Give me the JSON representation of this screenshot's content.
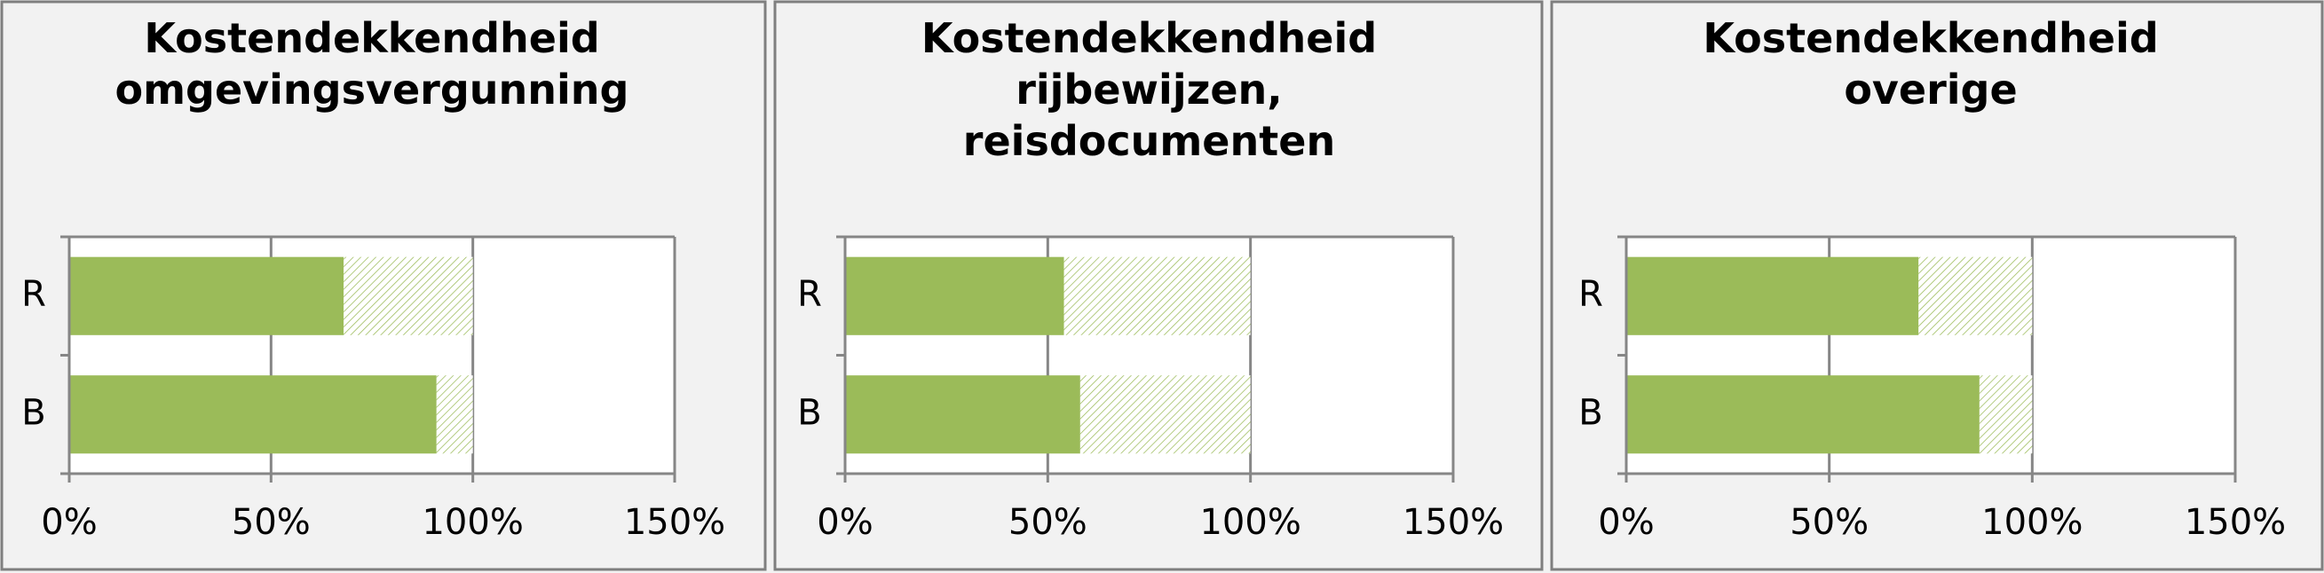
{
  "chart_data": [
    {
      "type": "bar",
      "orientation": "horizontal",
      "title": "Kostendekkendheid omgevingsvergunning",
      "categories": [
        "R",
        "B"
      ],
      "series": [
        {
          "color": "#9bbb59",
          "values": [
            68,
            91
          ]
        },
        {
          "color": "#9bbb59",
          "pattern": "hatch",
          "values": [
            32,
            9
          ]
        }
      ],
      "xlim": [
        0,
        150
      ],
      "xticks": [
        {
          "value": 0,
          "label": "0%"
        },
        {
          "value": 50,
          "label": "50%"
        },
        {
          "value": 100,
          "label": "100%"
        },
        {
          "value": 150,
          "label": "150%"
        }
      ],
      "grid": true
    },
    {
      "type": "bar",
      "orientation": "horizontal",
      "title": "Kostendekkendheid rijbewijzen, reisdocumenten",
      "categories": [
        "R",
        "B"
      ],
      "series": [
        {
          "color": "#9bbb59",
          "values": [
            54,
            58
          ]
        },
        {
          "color": "#9bbb59",
          "pattern": "hatch",
          "values": [
            46,
            42
          ]
        }
      ],
      "xlim": [
        0,
        150
      ],
      "xticks": [
        {
          "value": 0,
          "label": "0%"
        },
        {
          "value": 50,
          "label": "50%"
        },
        {
          "value": 100,
          "label": "100%"
        },
        {
          "value": 150,
          "label": "150%"
        }
      ],
      "grid": true
    },
    {
      "type": "bar",
      "orientation": "horizontal",
      "title": "Kostendekkendheid overige",
      "categories": [
        "R",
        "B"
      ],
      "series": [
        {
          "color": "#9bbb59",
          "values": [
            72,
            87
          ]
        },
        {
          "color": "#9bbb59",
          "pattern": "hatch",
          "values": [
            28,
            13
          ]
        }
      ],
      "xlim": [
        0,
        150
      ],
      "xticks": [
        {
          "value": 0,
          "label": "0%"
        },
        {
          "value": 50,
          "label": "50%"
        },
        {
          "value": 100,
          "label": "100%"
        },
        {
          "value": 150,
          "label": "150%"
        }
      ],
      "grid": true
    }
  ]
}
